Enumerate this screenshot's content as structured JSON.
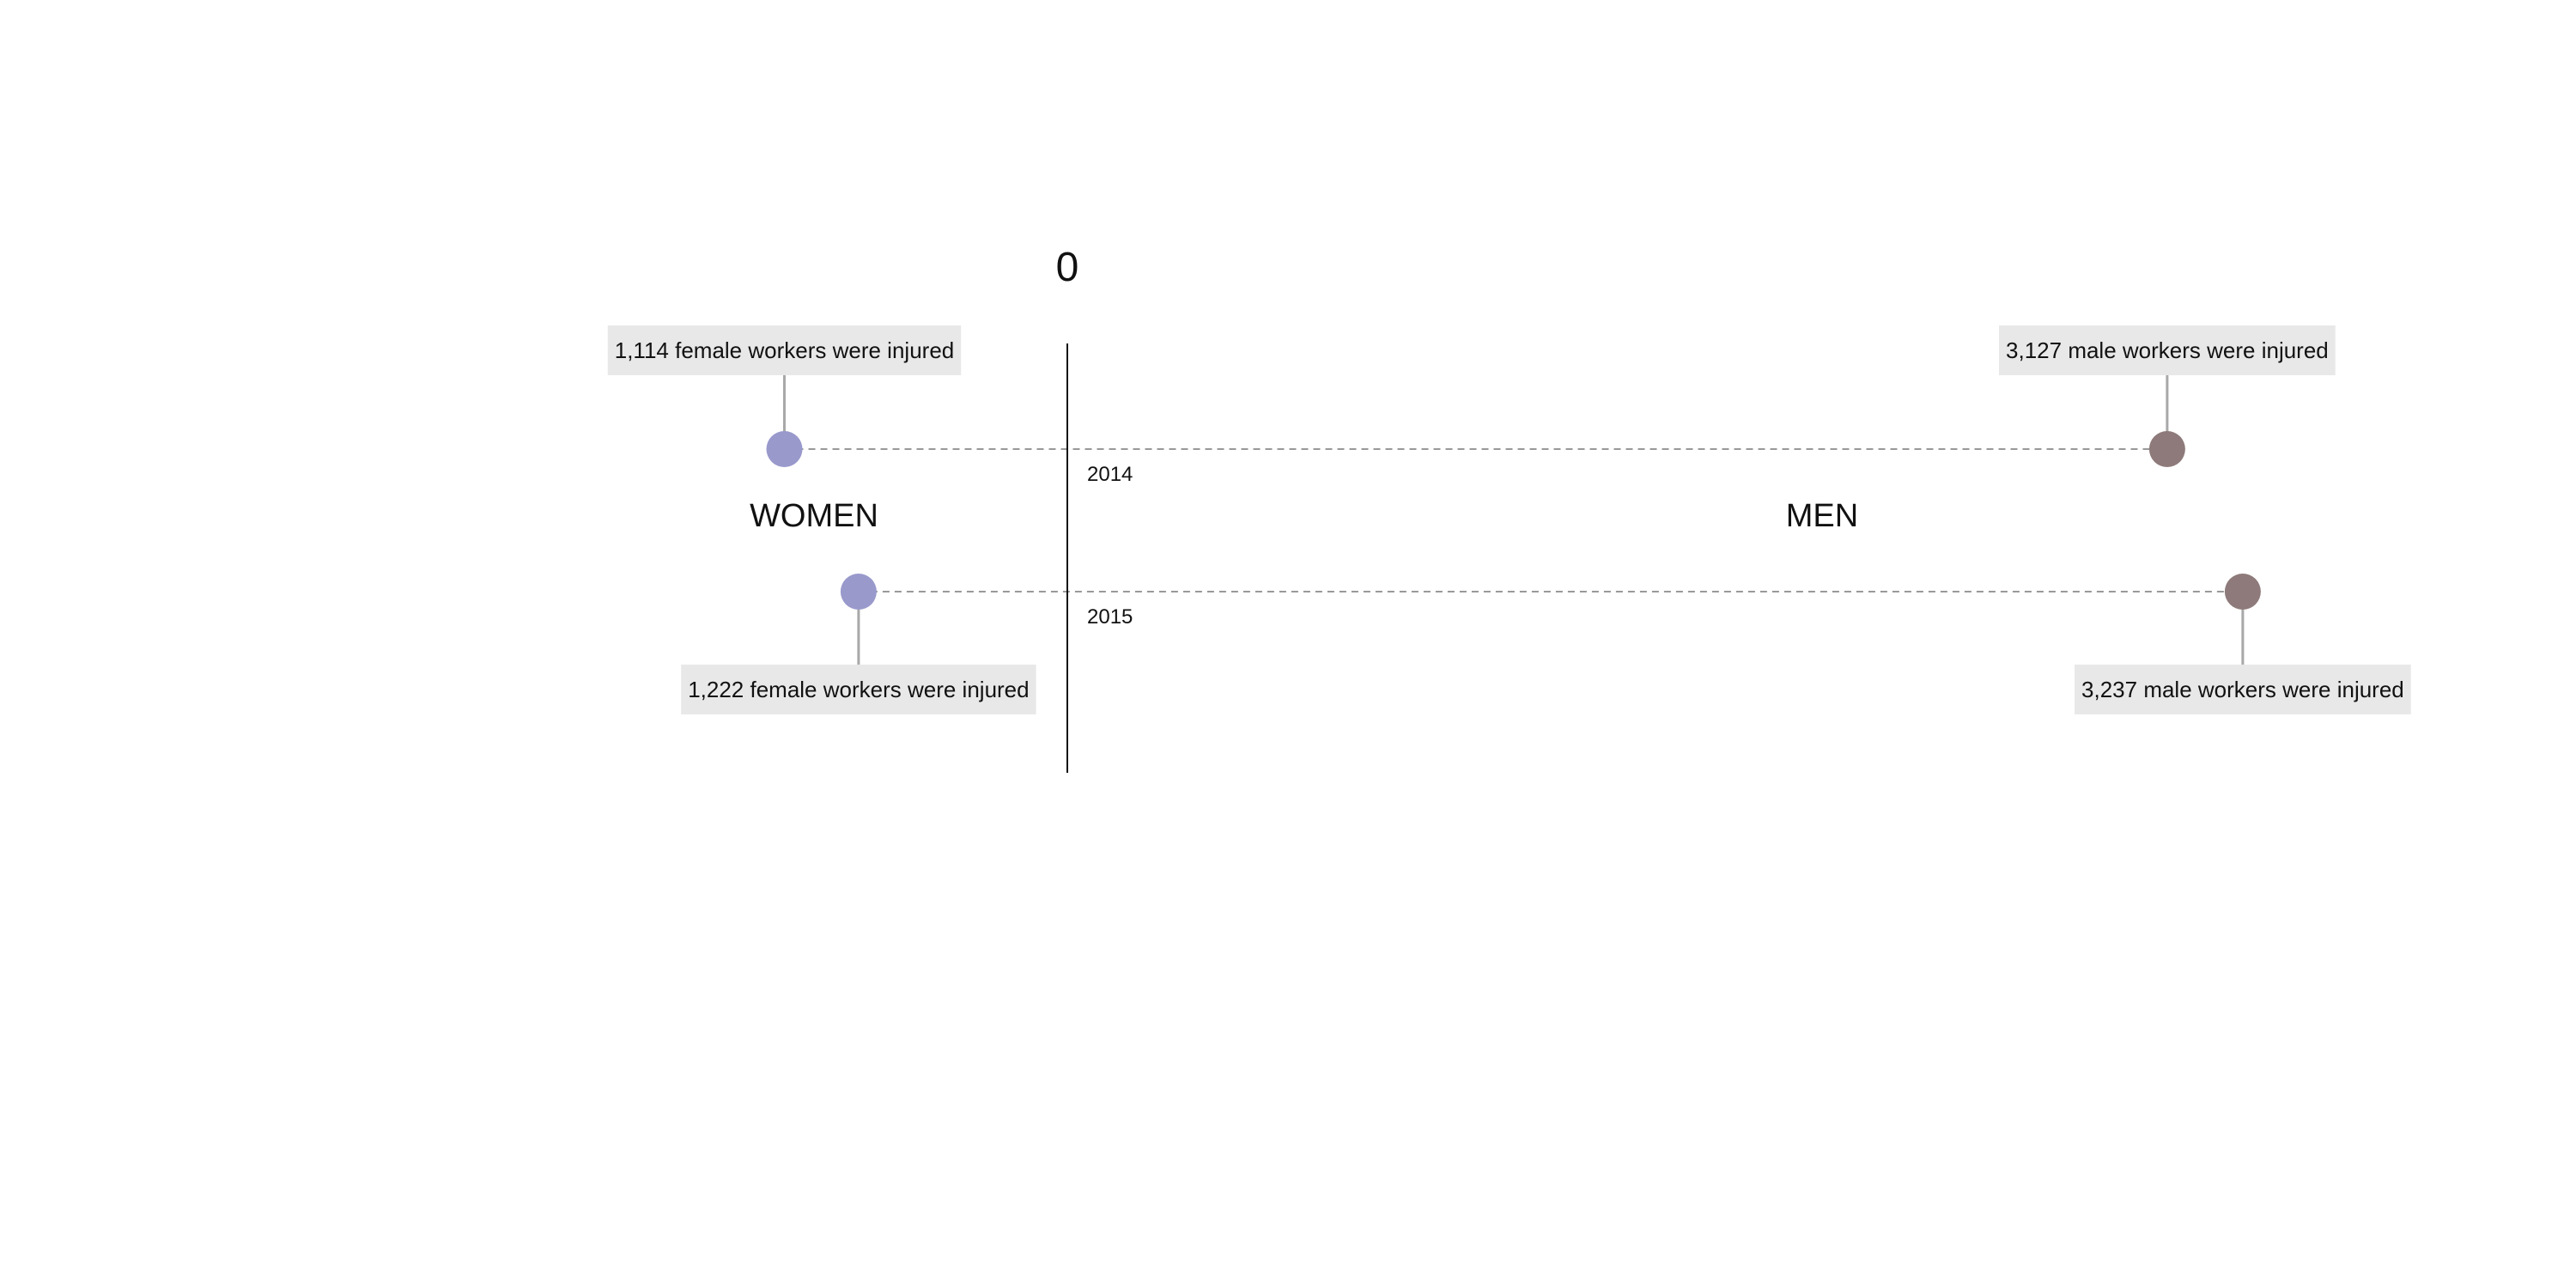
{
  "chart_data": {
    "type": "scatter",
    "x_axis_label": "0",
    "groups": [
      {
        "key": "women",
        "label": "WOMEN",
        "color": "#9999cc"
      },
      {
        "key": "men",
        "label": "MEN",
        "color": "#8e7a7a"
      }
    ],
    "rows": [
      {
        "year": "2014",
        "women": 1114,
        "men": 3127,
        "women_annotation": "1,114 female workers were injured",
        "men_annotation": "3,127 male workers were injured"
      },
      {
        "year": "2015",
        "women": 1222,
        "men": 3237,
        "women_annotation": "1,222 female workers were injured",
        "men_annotation": "3,237 male workers were injured"
      }
    ]
  },
  "colors": {
    "connector": "#999999",
    "stem": "#a8a8a8",
    "annotation_bg": "#e8e8e8",
    "axis": "#111111"
  }
}
